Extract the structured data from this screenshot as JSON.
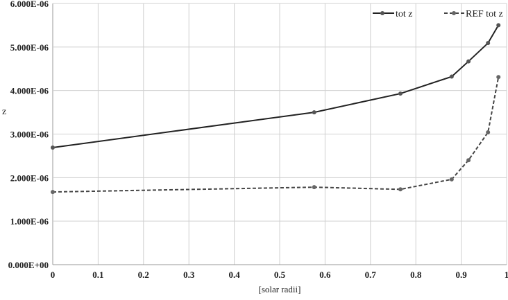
{
  "chart_data": {
    "type": "line",
    "title": "",
    "xlabel": "[solar radii]",
    "ylabel": "z",
    "xlim": [
      0,
      1
    ],
    "ylim": [
      0,
      6e-06
    ],
    "grid": true,
    "legend_position": "top-right",
    "x_ticks": [
      "0",
      "0.1",
      "0.2",
      "0.3",
      "0.4",
      "0.5",
      "0.6",
      "0.7",
      "0.8",
      "0.9",
      "1"
    ],
    "y_ticks": [
      "0.000E+00",
      "1.000E-06",
      "2.000E-06",
      "3.000E-06",
      "4.000E-06",
      "5.000E-06",
      "6.000E-06"
    ],
    "series": [
      {
        "name": "tot z",
        "style": "solid",
        "color": "#222222",
        "x": [
          0,
          0.576,
          0.766,
          0.879,
          0.916,
          0.959,
          0.982
        ],
        "y": [
          2.69e-06,
          3.5e-06,
          3.93e-06,
          4.32e-06,
          4.67e-06,
          5.09e-06,
          5.5e-06
        ]
      },
      {
        "name": "REF tot z",
        "style": "dashed",
        "color": "#444444",
        "x": [
          0,
          0.576,
          0.766,
          0.879,
          0.916,
          0.959,
          0.982
        ],
        "y": [
          1.67e-06,
          1.78e-06,
          1.73e-06,
          1.96e-06,
          2.4e-06,
          3.04e-06,
          4.31e-06
        ]
      }
    ]
  }
}
